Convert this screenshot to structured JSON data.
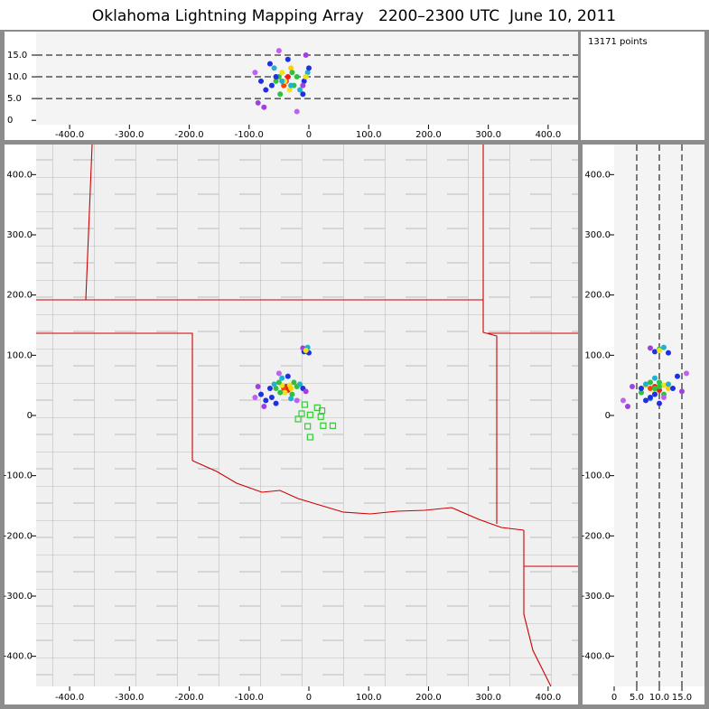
{
  "chart_data": {
    "type": "lma",
    "title": "Oklahoma Lightning Mapping Array   2200–2300 UTC  June 10, 2011",
    "points_label": "13171 points",
    "sources": {
      "x": [
        -38,
        -35,
        -42,
        -45,
        -32,
        -40,
        -30,
        -50,
        -25,
        -48,
        -28,
        -55,
        -20,
        -58,
        -15,
        -45,
        -30,
        -65,
        -10,
        -62,
        -72,
        -55,
        -80,
        -35,
        -85,
        -5,
        -75,
        -50,
        -20,
        -90,
        -5,
        -8,
        -2,
        -10,
        0,
        -5
      ],
      "y": [
        48,
        42,
        45,
        50,
        50,
        38,
        45,
        55,
        55,
        38,
        35,
        45,
        48,
        52,
        52,
        62,
        28,
        45,
        45,
        30,
        25,
        20,
        35,
        65,
        48,
        40,
        15,
        70,
        25,
        30,
        110,
        106,
        113,
        112,
        104,
        108
      ],
      "alt": [
        9,
        10,
        8,
        11,
        7,
        9,
        12,
        10,
        8,
        6,
        11,
        9,
        10,
        12,
        7,
        9,
        8,
        13,
        6,
        8,
        7,
        10,
        9,
        14,
        4,
        15,
        3,
        16,
        2,
        11,
        10,
        9,
        11,
        8,
        12,
        10
      ],
      "colors": [
        "#e8201a",
        "#e8201a",
        "#ff4000",
        "#f0e020",
        "#f0e020",
        "#f0e020",
        "#ffd000",
        "#30c040",
        "#30c040",
        "#30c040",
        "#30c040",
        "#30c040",
        "#30c040",
        "#20b0d0",
        "#20b0d0",
        "#20b0d0",
        "#20b0d0",
        "#2030e0",
        "#2030e0",
        "#2030e0",
        "#2030e0",
        "#2030e0",
        "#2030e0",
        "#2030e0",
        "#a040e0",
        "#a040e0",
        "#a040e0",
        "#c060f0",
        "#c060f0",
        "#c060f0",
        "#30c040",
        "#2030e0",
        "#20b0d0",
        "#a040e0",
        "#2030e0",
        "#f0e020"
      ]
    },
    "stations": {
      "color": "#33cc33",
      "x": [
        -7,
        14,
        22,
        -12,
        2,
        20,
        -18,
        -2,
        40,
        24,
        2
      ],
      "y": [
        18,
        13,
        8,
        3,
        1,
        -2,
        -6,
        -18,
        -17,
        -17,
        -36
      ]
    },
    "plan": {
      "xlim": [
        -456,
        450
      ],
      "ylim": [
        -450,
        450
      ],
      "xticks": [
        {
          "value": -400,
          "label": "-400.0"
        },
        {
          "value": -300,
          "label": "-300.0"
        },
        {
          "value": -200,
          "label": "-200.0"
        },
        {
          "value": -100,
          "label": "-100.0"
        },
        0,
        {
          "value": 100,
          "label": "100.0"
        },
        {
          "value": 200,
          "label": "200.0"
        },
        {
          "value": 300,
          "label": "300.0"
        },
        {
          "value": 400,
          "label": "400.0"
        }
      ],
      "yticks": [
        {
          "value": -400,
          "label": "-400.0"
        },
        {
          "value": -300,
          "label": "-300.0"
        },
        {
          "value": -200,
          "label": "-200.0"
        },
        {
          "value": -100,
          "label": "-100.0"
        },
        0,
        {
          "value": 100,
          "label": "100.0"
        },
        {
          "value": 200,
          "label": "200.0"
        },
        {
          "value": 300,
          "label": "300.0"
        },
        {
          "value": 400,
          "label": "400.0"
        }
      ]
    },
    "x_alt": {
      "ylim": [
        -1,
        20.4
      ],
      "yticks": [
        0,
        {
          "value": 5,
          "label": "5.0"
        },
        {
          "value": 10,
          "label": "10.0"
        },
        {
          "value": 15,
          "label": "15.0"
        }
      ]
    },
    "alt_y": {
      "xlim": [
        0,
        20
      ],
      "xticks": [
        0,
        {
          "value": 5,
          "label": "5.0"
        },
        {
          "value": 10,
          "label": "10.0"
        },
        {
          "value": 15,
          "label": "15.0"
        }
      ]
    }
  }
}
